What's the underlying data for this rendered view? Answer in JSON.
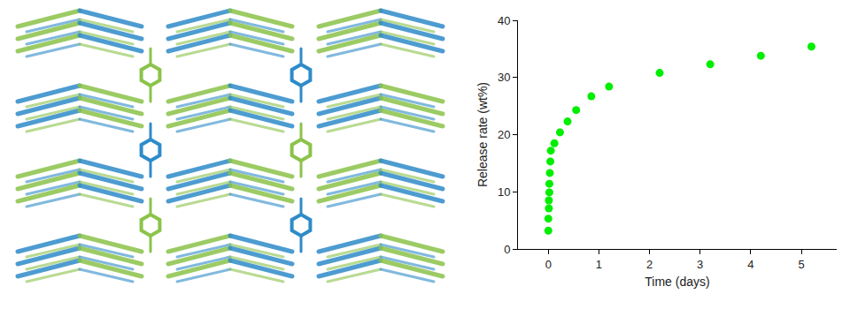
{
  "chart_data": {
    "type": "scatter",
    "x_label": "Time (days)",
    "y_label": "Release rate (wt%)",
    "x": [
      0,
      0,
      0.01,
      0.01,
      0.02,
      0.02,
      0.03,
      0.04,
      0.05,
      0.12,
      0.23,
      0.38,
      0.55,
      0.85,
      1.2,
      2.2,
      3.2,
      4.2,
      5.2
    ],
    "values": [
      3.2,
      5.3,
      7.1,
      8.5,
      9.9,
      11.4,
      13.3,
      15.3,
      17.2,
      18.5,
      20.4,
      22.3,
      24.3,
      26.7,
      28.4,
      30.8,
      32.3,
      33.8,
      35.4
    ],
    "color": "#00ee00",
    "marker": "circle",
    "xlim": [
      -0.6,
      5.7
    ],
    "xticks": [
      0,
      1,
      2,
      3,
      4,
      5
    ],
    "ylim": [
      0,
      40
    ],
    "yticks": [
      0,
      10,
      20,
      30,
      40
    ],
    "grid": false
  }
}
